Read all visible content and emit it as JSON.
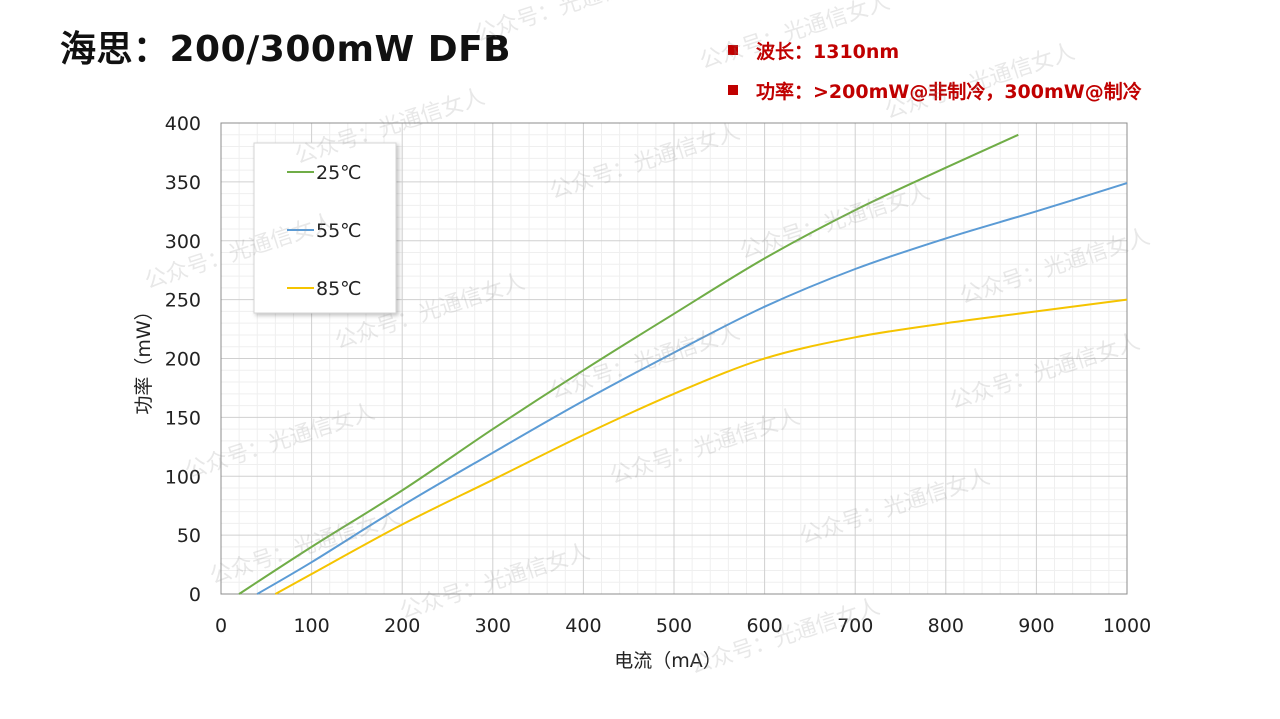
{
  "header": {
    "title": "海思：200/300mW DFB",
    "specs": [
      "波长：1310nm",
      "功率：>200mW@非制冷，300mW@制冷"
    ]
  },
  "watermark": "公众号：光通信女人",
  "colors": {
    "accent_red": "#c00000",
    "series_25": "#70ad47",
    "series_55": "#5b9bd5",
    "series_85": "#f5c400"
  },
  "chart_data": {
    "type": "line",
    "xlabel": "电流（mA）",
    "ylabel": "功率（mW）",
    "xlim": [
      0,
      1000
    ],
    "ylim": [
      0,
      400
    ],
    "xticks": [
      0,
      100,
      200,
      300,
      400,
      500,
      600,
      700,
      800,
      900,
      1000
    ],
    "yticks": [
      0,
      50,
      100,
      150,
      200,
      250,
      300,
      350,
      400
    ],
    "grid": true,
    "legend_position": "top-left",
    "series": [
      {
        "name": "25℃",
        "color": "#70ad47",
        "x": [
          20,
          100,
          200,
          300,
          400,
          500,
          600,
          700,
          800,
          880
        ],
        "y": [
          0,
          40,
          88,
          140,
          190,
          238,
          285,
          326,
          362,
          390
        ]
      },
      {
        "name": "55℃",
        "color": "#5b9bd5",
        "x": [
          40,
          100,
          200,
          300,
          400,
          500,
          600,
          700,
          800,
          900,
          1000
        ],
        "y": [
          0,
          27,
          75,
          120,
          164,
          205,
          244,
          276,
          302,
          325,
          349
        ]
      },
      {
        "name": "85℃",
        "color": "#f5c400",
        "x": [
          60,
          100,
          200,
          300,
          400,
          500,
          600,
          700,
          800,
          900,
          1000
        ],
        "y": [
          0,
          17,
          59,
          97,
          135,
          170,
          200,
          218,
          230,
          240,
          250
        ]
      }
    ]
  }
}
